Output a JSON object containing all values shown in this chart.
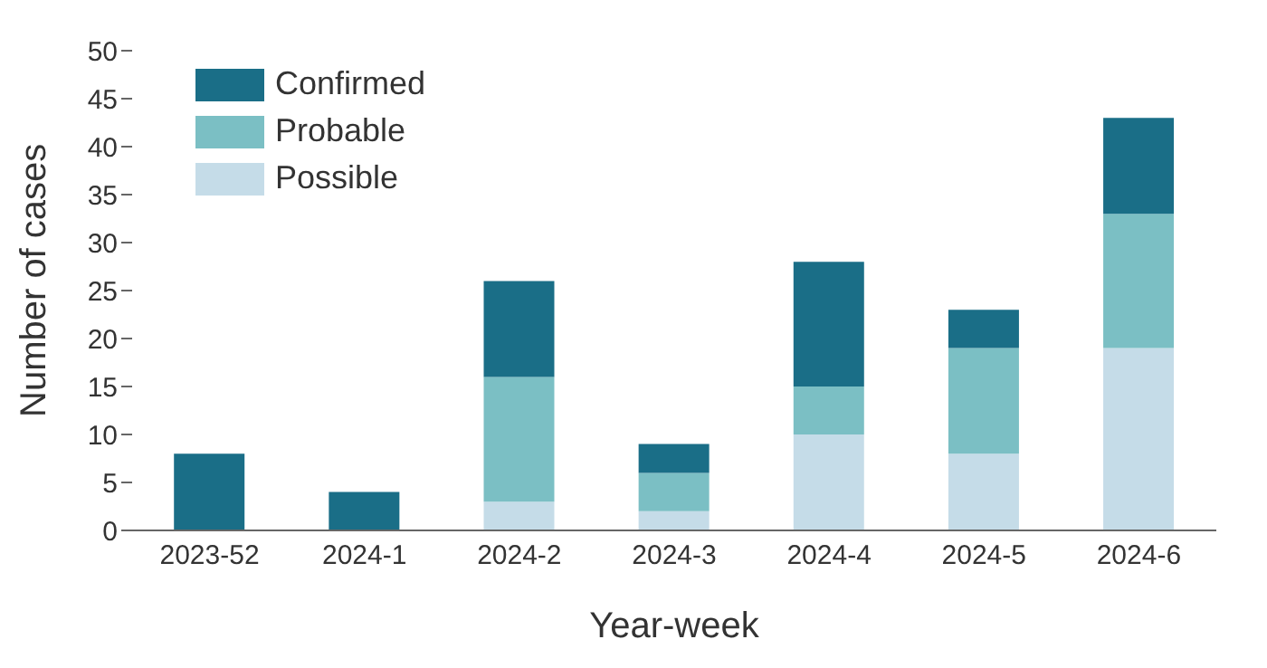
{
  "chart_data": {
    "type": "bar",
    "stacked": true,
    "xlabel": "Year-week",
    "ylabel": "Number of cases",
    "categories": [
      "2023-52",
      "2024-1",
      "2024-2",
      "2024-3",
      "2024-4",
      "2024-5",
      "2024-6"
    ],
    "series": [
      {
        "name": "Possible",
        "color": "#c5dce8",
        "values": [
          0,
          0,
          3,
          2,
          10,
          8,
          19
        ]
      },
      {
        "name": "Probable",
        "color": "#7bbfc4",
        "values": [
          0,
          0,
          13,
          4,
          5,
          11,
          14
        ]
      },
      {
        "name": "Confirmed",
        "color": "#1a6e87",
        "values": [
          8,
          4,
          10,
          3,
          13,
          4,
          10
        ]
      }
    ],
    "ylim": [
      0,
      50
    ],
    "yticks": [
      0,
      5,
      10,
      15,
      20,
      25,
      30,
      35,
      40,
      45,
      50
    ],
    "grid": false,
    "legend": "top left"
  }
}
